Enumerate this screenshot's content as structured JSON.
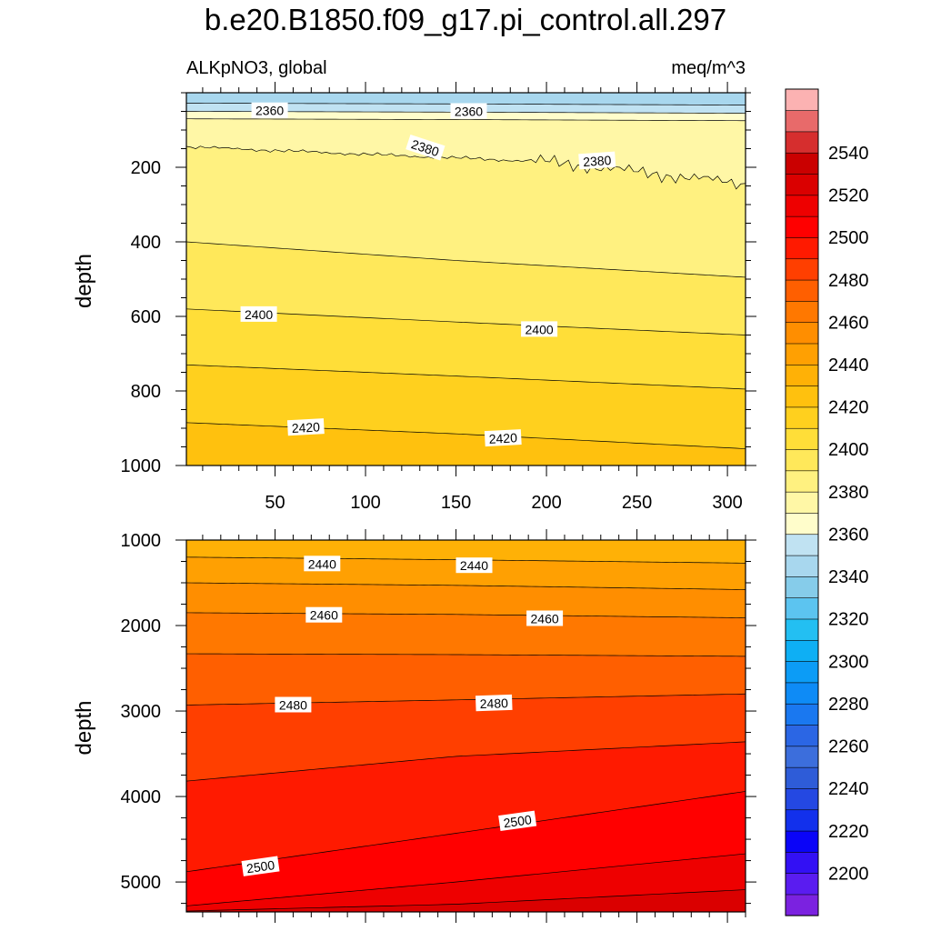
{
  "chart_data": {
    "type": "contour",
    "title": "b.e20.B1850.f09_g17.pi_control.all.297",
    "subtitle_left": "ALKpNO3, global",
    "subtitle_right": "meq/m^3",
    "x_axis": {
      "range": [
        1,
        310
      ],
      "ticks": [
        50,
        100,
        150,
        200,
        250,
        300
      ],
      "tick_labels": [
        "50",
        "100",
        "150",
        "200",
        "250",
        "300"
      ]
    },
    "panels": [
      {
        "name": "upper",
        "ylabel": "depth",
        "y_range": [
          0,
          1000
        ],
        "y_inverted": true,
        "yticks": [
          200,
          400,
          600,
          800,
          1000
        ],
        "ytick_labels": [
          "200",
          "400",
          "600",
          "800",
          "1000"
        ],
        "contours": [
          {
            "level": 2350,
            "x": [
              1,
              150,
              310
            ],
            "y": [
              28,
              30,
              33
            ]
          },
          {
            "level": 2360,
            "x": [
              1,
              150,
              310
            ],
            "y": [
              50,
              52,
              55
            ]
          },
          {
            "level": 2370,
            "x": [
              1,
              150,
              310
            ],
            "y": [
              70,
              72,
              75
            ]
          },
          {
            "level": 2380,
            "x": [
              1,
              100,
              200,
              310
            ],
            "y": [
              145,
              165,
              185,
              245
            ]
          },
          {
            "level": 2390,
            "x": [
              1,
              150,
              310
            ],
            "y": [
              400,
              450,
              495
            ]
          },
          {
            "level": 2400,
            "x": [
              1,
              150,
              310
            ],
            "y": [
              580,
              615,
              650
            ]
          },
          {
            "level": 2410,
            "x": [
              1,
              150,
              310
            ],
            "y": [
              730,
              760,
              795
            ]
          },
          {
            "level": 2420,
            "x": [
              1,
              150,
              310
            ],
            "y": [
              885,
              915,
              955
            ]
          }
        ],
        "labels": [
          {
            "text": "2360",
            "x": 47,
            "y": 48,
            "angle": 0
          },
          {
            "text": "2360",
            "x": 157,
            "y": 50,
            "angle": 0
          },
          {
            "text": "2380",
            "x": 133,
            "y": 148,
            "angle": 18
          },
          {
            "text": "2380",
            "x": 228,
            "y": 183,
            "angle": -4
          },
          {
            "text": "2400",
            "x": 41,
            "y": 595,
            "angle": 0
          },
          {
            "text": "2400",
            "x": 196,
            "y": 635,
            "angle": 0
          },
          {
            "text": "2420",
            "x": 67,
            "y": 898,
            "angle": -3
          },
          {
            "text": "2420",
            "x": 176,
            "y": 927,
            "angle": -3
          }
        ]
      },
      {
        "name": "lower",
        "ylabel": "depth",
        "y_range": [
          1000,
          5350
        ],
        "y_inverted": true,
        "yticks": [
          1000,
          2000,
          3000,
          4000,
          5000
        ],
        "ytick_labels": [
          "1000",
          "2000",
          "3000",
          "4000",
          "5000"
        ],
        "contours": [
          {
            "level": 2440,
            "x": [
              1,
              150,
              310
            ],
            "y": [
              1200,
              1230,
              1270
            ]
          },
          {
            "level": 2450,
            "x": [
              1,
              150,
              310
            ],
            "y": [
              1500,
              1530,
              1580
            ]
          },
          {
            "level": 2460,
            "x": [
              1,
              150,
              310
            ],
            "y": [
              1850,
              1870,
              1910
            ]
          },
          {
            "level": 2470,
            "x": [
              1,
              150,
              310
            ],
            "y": [
              2330,
              2340,
              2360
            ]
          },
          {
            "level": 2480,
            "x": [
              1,
              150,
              310
            ],
            "y": [
              2930,
              2870,
              2800
            ]
          },
          {
            "level": 2490,
            "x": [
              1,
              150,
              310
            ],
            "y": [
              3820,
              3530,
              3360
            ]
          },
          {
            "level": 2500,
            "x": [
              1,
              150,
              310
            ],
            "y": [
              4880,
              4430,
              3940
            ]
          },
          {
            "level": 2510,
            "x": [
              1,
              150,
              310
            ],
            "y": [
              5280,
              5000,
              4670
            ]
          },
          {
            "level": 2520,
            "x": [
              1,
              150,
              310
            ],
            "y": [
              5340,
              5260,
              5090
            ]
          }
        ],
        "labels": [
          {
            "text": "2440",
            "x": 76,
            "y": 1280,
            "angle": 0
          },
          {
            "text": "2440",
            "x": 160,
            "y": 1300,
            "angle": 0
          },
          {
            "text": "2460",
            "x": 77,
            "y": 1880,
            "angle": 0
          },
          {
            "text": "2460",
            "x": 199,
            "y": 1920,
            "angle": 0
          },
          {
            "text": "2480",
            "x": 60,
            "y": 2930,
            "angle": 0
          },
          {
            "text": "2480",
            "x": 171,
            "y": 2910,
            "angle": -2
          },
          {
            "text": "2500",
            "x": 42,
            "y": 4820,
            "angle": -8
          },
          {
            "text": "2500",
            "x": 184,
            "y": 4290,
            "angle": -8
          }
        ]
      }
    ],
    "colorbar": {
      "levels": [
        2190,
        2200,
        2210,
        2220,
        2230,
        2240,
        2250,
        2260,
        2270,
        2280,
        2290,
        2300,
        2310,
        2320,
        2330,
        2340,
        2350,
        2360,
        2370,
        2380,
        2390,
        2400,
        2410,
        2420,
        2430,
        2440,
        2450,
        2460,
        2470,
        2480,
        2490,
        2500,
        2510,
        2520,
        2530,
        2540,
        2550,
        2560
      ],
      "colors": [
        "#7B22E0",
        "#5A1CF0",
        "#3310F4",
        "#0A04F8",
        "#1230EC",
        "#2448E2",
        "#2E5CD8",
        "#3C6EDC",
        "#2B66E4",
        "#1A78F0",
        "#0E8BF6",
        "#0C9CF6",
        "#0EAFF4",
        "#23BFF2",
        "#5CC4F0",
        "#86CCEA",
        "#A8D7EE",
        "#C0E2F2",
        "#FFFDCB",
        "#FFF7A6",
        "#FFF180",
        "#FFE85A",
        "#FFDE38",
        "#FFD01E",
        "#FFC10E",
        "#FFB106",
        "#FFA002",
        "#FF8E00",
        "#FF7800",
        "#FF5F00",
        "#FF3F00",
        "#FF1A00",
        "#FF0000",
        "#EE0000",
        "#DA0000",
        "#CA0000",
        "#D62E2E",
        "#E86A6A",
        "#FCB2B2"
      ],
      "label_values": [
        2200,
        2220,
        2240,
        2260,
        2280,
        2300,
        2320,
        2340,
        2360,
        2380,
        2400,
        2420,
        2440,
        2460,
        2480,
        2500,
        2520,
        2540
      ],
      "label_texts": [
        "2200",
        "2220",
        "2240",
        "2260",
        "2280",
        "2300",
        "2320",
        "2340",
        "2360",
        "2380",
        "2400",
        "2420",
        "2440",
        "2460",
        "2480",
        "2500",
        "2520",
        "2540"
      ]
    }
  }
}
